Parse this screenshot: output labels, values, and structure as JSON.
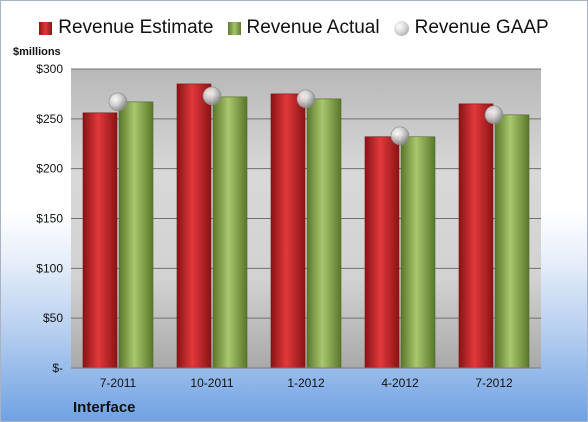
{
  "legend": {
    "estimate": "Revenue Estimate",
    "actual": "Revenue Actual",
    "gaap": "Revenue GAAP"
  },
  "unit_label": "$millions",
  "company_label": "Interface",
  "colors": {
    "estimate": "#c8282b",
    "actual": "#8fae52",
    "gaap": "#d0d0d0"
  },
  "chart_data": {
    "type": "bar",
    "categories": [
      "7-2011",
      "10-2011",
      "1-2012",
      "4-2012",
      "7-2012"
    ],
    "series": [
      {
        "name": "Revenue Estimate",
        "values": [
          256,
          285,
          275,
          232,
          265
        ]
      },
      {
        "name": "Revenue Actual",
        "values": [
          267,
          272,
          270,
          232,
          254
        ]
      },
      {
        "name": "Revenue GAAP",
        "values": [
          267,
          273,
          270,
          233,
          254
        ]
      }
    ],
    "ylim": [
      0,
      300
    ],
    "yticks": [
      0,
      50,
      100,
      150,
      200,
      250,
      300
    ],
    "ytick_labels": [
      "$-",
      "$50",
      "$100",
      "$150",
      "$200",
      "$250",
      "$300"
    ],
    "grid": true,
    "legend_position": "top"
  }
}
